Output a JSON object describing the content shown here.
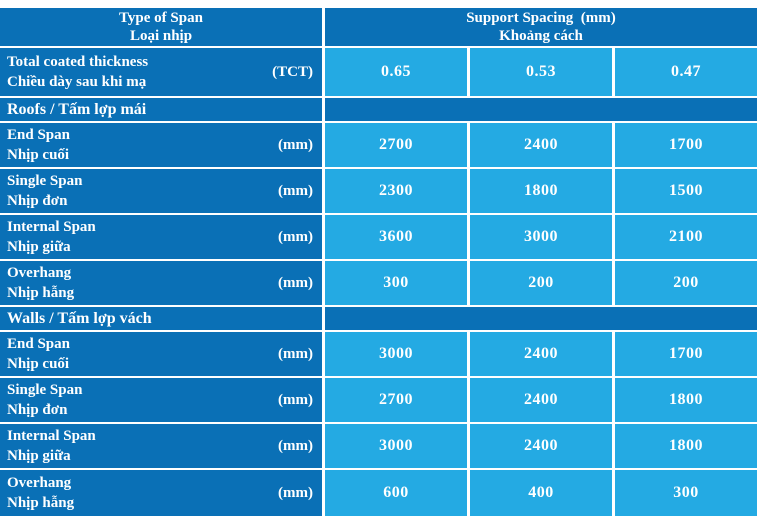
{
  "colors": {
    "dark_blue": "#0A70B6",
    "light_blue": "#24AAE3",
    "border_white": "#FFFFFF",
    "text_white": "#FFFFFF"
  },
  "header": {
    "span_col_line1": "Type of Span",
    "span_col_line2": "Loại nhịp",
    "spacing_col_line1": "Support Spacing  (mm)",
    "spacing_col_line2": "Khoảng cách"
  },
  "thickness_row": {
    "en": "Total coated thickness",
    "vi": "Chiều dày sau khi mạ",
    "unit": "(TCT)",
    "values": [
      "0.65",
      "0.53",
      "0.47"
    ]
  },
  "sections": [
    {
      "title": "Roofs / Tấm lợp mái",
      "rows": [
        {
          "en": "End Span",
          "vi": "Nhịp cuối",
          "unit": "(mm)",
          "values": [
            "2700",
            "2400",
            "1700"
          ]
        },
        {
          "en": "Single Span",
          "vi": "Nhịp đơn",
          "unit": "(mm)",
          "values": [
            "2300",
            "1800",
            "1500"
          ]
        },
        {
          "en": "Internal Span",
          "vi": "Nhịp giữa",
          "unit": "(mm)",
          "values": [
            "3600",
            "3000",
            "2100"
          ]
        },
        {
          "en": "Overhang",
          "vi": "Nhịp hẫng",
          "unit": "(mm)",
          "values": [
            "300",
            "200",
            "200"
          ]
        }
      ]
    },
    {
      "title": "Walls / Tấm lợp vách",
      "rows": [
        {
          "en": "End Span",
          "vi": "Nhịp cuối",
          "unit": "(mm)",
          "values": [
            "3000",
            "2400",
            "1700"
          ]
        },
        {
          "en": "Single Span",
          "vi": "Nhịp đơn",
          "unit": "(mm)",
          "values": [
            "2700",
            "2400",
            "1800"
          ]
        },
        {
          "en": "Internal Span",
          "vi": "Nhịp giữa",
          "unit": "(mm)",
          "values": [
            "3000",
            "2400",
            "1800"
          ]
        },
        {
          "en": "Overhang",
          "vi": "Nhịp hẫng",
          "unit": "(mm)",
          "values": [
            "600",
            "400",
            "300"
          ]
        }
      ]
    }
  ]
}
